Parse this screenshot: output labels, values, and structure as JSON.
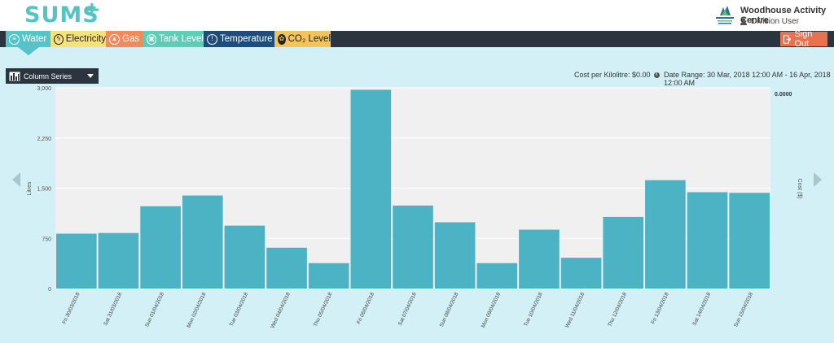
{
  "header": {
    "logo_text": "SUMS",
    "logo_plus": "+",
    "org_name": "Woodhouse Activity Centre",
    "user_role": "Division User"
  },
  "tabs": [
    {
      "label": "Water",
      "icon": "water-icon",
      "active": true
    },
    {
      "label": "Electricity",
      "icon": "lightning-icon"
    },
    {
      "label": "Gas",
      "icon": "flame-icon"
    },
    {
      "label": "Tank Level",
      "icon": "tank-icon"
    },
    {
      "label": "Temperature",
      "icon": "thermometer-icon"
    },
    {
      "label": "CO₂ Level",
      "icon": "co2-icon"
    }
  ],
  "signout_label": "Sign Out",
  "toolbar": {
    "series_select": "Column Series",
    "cost_per_kilolitre": "Cost per Kilolitre: $0.00",
    "date_range": "Date Range: 30 Mar, 2018 12:00 AM - 16 Apr, 2018 12:00 AM"
  },
  "colors": {
    "accent": "#55c4c8",
    "bar": "#4cb3c5",
    "plot_bg": "#f0f0f0",
    "page_bg": "#d2f0f6",
    "navbar": "#2b3540"
  },
  "chart_data": {
    "type": "bar",
    "ylabel": "Litres",
    "y2label": "Cost ($)",
    "y2_tick": "0.0000",
    "ylim": [
      0,
      3000
    ],
    "yticks": [
      "0",
      "750",
      "1,500",
      "2,250",
      "3,000"
    ],
    "ytick_values": [
      0,
      750,
      1500,
      2250,
      3000
    ],
    "grid": true,
    "categories": [
      "Fri 30/03/2018",
      "Sat 31/03/2018",
      "Sun 01/04/2018",
      "Mon 02/04/2018",
      "Tue 03/04/2018",
      "Wed 04/04/2018",
      "Thu 05/04/2018",
      "Fri 06/04/2018",
      "Sat 07/04/2018",
      "Sun 08/04/2018",
      "Mon 09/04/2018",
      "Tue 10/04/2018",
      "Wed 11/04/2018",
      "Thu 12/04/2018",
      "Fri 13/04/2018",
      "Sat 14/04/2018",
      "Sun 15/04/2018"
    ],
    "values": [
      820,
      830,
      1230,
      1390,
      940,
      610,
      380,
      2970,
      1240,
      990,
      380,
      880,
      460,
      1070,
      1620,
      1440,
      1430
    ]
  }
}
